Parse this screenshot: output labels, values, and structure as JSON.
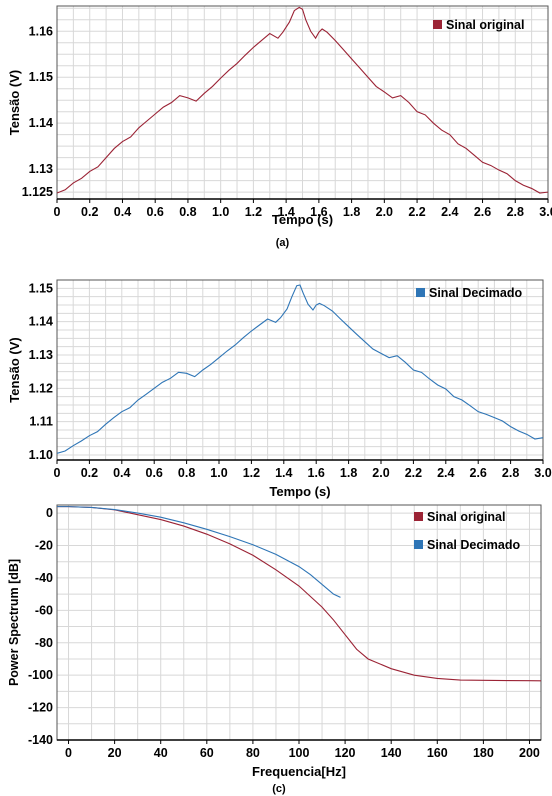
{
  "chart_data": [
    {
      "type": "line",
      "xlabel": "Tempo (s)",
      "ylabel": "Tensão (V)",
      "caption": "(a)",
      "xlim": [
        0,
        3.0
      ],
      "ylim": [
        1.1235,
        1.1655
      ],
      "xticks": [
        0,
        0.2,
        0.4,
        0.6,
        0.8,
        1.0,
        1.2,
        1.4,
        1.6,
        1.8,
        2.0,
        2.2,
        2.4,
        2.6,
        2.8,
        3.0
      ],
      "xtick_labels": [
        "0",
        "0.2",
        "0.4",
        "0.6",
        "0.8",
        "1.0",
        "1.2",
        "1.4",
        "1.6",
        "1.8",
        "2.0",
        "2.2",
        "2.4",
        "2.6",
        "2.8",
        "3.0"
      ],
      "yticks": [
        1.125,
        1.13,
        1.14,
        1.15,
        1.16
      ],
      "ytick_labels": [
        "1.125",
        "1.13",
        "1.14",
        "1.15",
        "1.16"
      ],
      "grid": true,
      "legend": "top-right",
      "series": [
        {
          "name": "Sinal original",
          "color": "#9b2335",
          "x": [
            0,
            0.05,
            0.1,
            0.15,
            0.2,
            0.25,
            0.3,
            0.35,
            0.4,
            0.45,
            0.5,
            0.55,
            0.6,
            0.65,
            0.7,
            0.75,
            0.8,
            0.85,
            0.9,
            0.95,
            1.0,
            1.05,
            1.1,
            1.15,
            1.2,
            1.25,
            1.3,
            1.35,
            1.38,
            1.42,
            1.45,
            1.48,
            1.5,
            1.52,
            1.55,
            1.58,
            1.6,
            1.62,
            1.65,
            1.7,
            1.75,
            1.8,
            1.85,
            1.9,
            1.95,
            2.0,
            2.05,
            2.1,
            2.15,
            2.2,
            2.25,
            2.3,
            2.35,
            2.4,
            2.45,
            2.5,
            2.55,
            2.6,
            2.65,
            2.7,
            2.75,
            2.8,
            2.85,
            2.9,
            2.95,
            3.0
          ],
          "y": [
            1.1248,
            1.1255,
            1.127,
            1.128,
            1.1295,
            1.1305,
            1.1325,
            1.1345,
            1.136,
            1.137,
            1.139,
            1.1405,
            1.142,
            1.1435,
            1.1445,
            1.146,
            1.1455,
            1.1448,
            1.1465,
            1.148,
            1.1498,
            1.1515,
            1.153,
            1.1548,
            1.1565,
            1.158,
            1.1595,
            1.1585,
            1.1598,
            1.162,
            1.1645,
            1.1652,
            1.1648,
            1.1625,
            1.16,
            1.1585,
            1.1598,
            1.1605,
            1.1598,
            1.158,
            1.156,
            1.154,
            1.152,
            1.15,
            1.148,
            1.1468,
            1.1455,
            1.146,
            1.1445,
            1.1425,
            1.1418,
            1.14,
            1.1385,
            1.1375,
            1.1355,
            1.1345,
            1.133,
            1.1315,
            1.1308,
            1.1298,
            1.129,
            1.1275,
            1.1265,
            1.1258,
            1.1248,
            1.125
          ]
        }
      ]
    },
    {
      "type": "line",
      "xlabel": "Tempo (s)",
      "ylabel": "Tensão (V)",
      "xlim": [
        0,
        3.0
      ],
      "ylim": [
        1.0985,
        1.1525
      ],
      "xticks": [
        0,
        0.2,
        0.4,
        0.6,
        0.8,
        1.0,
        1.2,
        1.4,
        1.6,
        1.8,
        2.0,
        2.2,
        2.4,
        2.6,
        2.8,
        3.0
      ],
      "xtick_labels": [
        "0",
        "0.2",
        "0.4",
        "0.6",
        "0.8",
        "1.0",
        "1.2",
        "1.4",
        "1.6",
        "1.8",
        "2.0",
        "2.2",
        "2.4",
        "2.6",
        "2.8",
        "3.0"
      ],
      "yticks": [
        1.1,
        1.11,
        1.12,
        1.13,
        1.14,
        1.15
      ],
      "ytick_labels": [
        "1.10",
        "1.11",
        "1.12",
        "1.13",
        "1.14",
        "1.15"
      ],
      "grid": true,
      "legend": "top-right",
      "series": [
        {
          "name": "Sinal Decimado",
          "color": "#2e75b6",
          "x": [
            0,
            0.05,
            0.1,
            0.15,
            0.2,
            0.25,
            0.3,
            0.35,
            0.4,
            0.45,
            0.5,
            0.55,
            0.6,
            0.65,
            0.7,
            0.75,
            0.8,
            0.85,
            0.9,
            0.95,
            1.0,
            1.05,
            1.1,
            1.15,
            1.2,
            1.25,
            1.3,
            1.35,
            1.38,
            1.42,
            1.45,
            1.48,
            1.5,
            1.52,
            1.55,
            1.58,
            1.6,
            1.62,
            1.65,
            1.7,
            1.75,
            1.8,
            1.85,
            1.9,
            1.95,
            2.0,
            2.05,
            2.1,
            2.15,
            2.2,
            2.25,
            2.3,
            2.35,
            2.4,
            2.45,
            2.5,
            2.55,
            2.6,
            2.65,
            2.7,
            2.75,
            2.8,
            2.85,
            2.9,
            2.95,
            3.0
          ],
          "y": [
            1.1005,
            1.1012,
            1.1028,
            1.1042,
            1.1058,
            1.107,
            1.1092,
            1.1112,
            1.113,
            1.1142,
            1.1165,
            1.1182,
            1.12,
            1.1218,
            1.123,
            1.1248,
            1.1245,
            1.1235,
            1.1255,
            1.1272,
            1.1292,
            1.1312,
            1.133,
            1.1352,
            1.1372,
            1.139,
            1.1408,
            1.1398,
            1.1412,
            1.1438,
            1.1475,
            1.1508,
            1.151,
            1.1485,
            1.1452,
            1.1435,
            1.145,
            1.1455,
            1.1448,
            1.1432,
            1.1408,
            1.1385,
            1.1362,
            1.134,
            1.1318,
            1.1305,
            1.1292,
            1.1298,
            1.1278,
            1.1255,
            1.1248,
            1.1228,
            1.121,
            1.1198,
            1.1175,
            1.1165,
            1.1148,
            1.113,
            1.1122,
            1.1112,
            1.1102,
            1.1085,
            1.1072,
            1.1062,
            1.1048,
            1.1052
          ]
        }
      ]
    },
    {
      "type": "line",
      "xlabel": "Frequencia[Hz]",
      "ylabel": "Power Spectrum [dB]",
      "caption": "(c)",
      "xlim": [
        -5,
        205
      ],
      "ylim": [
        -140,
        5
      ],
      "xticks": [
        0,
        20,
        40,
        60,
        80,
        100,
        120,
        140,
        160,
        180,
        200
      ],
      "xtick_labels": [
        "0",
        "20",
        "40",
        "60",
        "80",
        "100",
        "120",
        "140",
        "160",
        "180",
        "200"
      ],
      "yticks": [
        0,
        -20,
        -40,
        -60,
        -80,
        -100,
        -120,
        -140
      ],
      "ytick_labels": [
        "0",
        "-20",
        "-40",
        "-60",
        "-80",
        "-100",
        "-120",
        "-140"
      ],
      "grid": true,
      "legend": "top-right",
      "series": [
        {
          "name": "Sinal original",
          "color": "#9b2335",
          "x": [
            -5,
            0,
            10,
            20,
            30,
            40,
            50,
            60,
            70,
            80,
            90,
            100,
            110,
            115,
            120,
            125,
            130,
            140,
            150,
            160,
            170,
            180,
            190,
            200,
            205
          ],
          "y": [
            4,
            4,
            3.5,
            2,
            -1,
            -4,
            -8,
            -13,
            -19,
            -26,
            -35,
            -45,
            -58,
            -66,
            -75,
            -84,
            -90,
            -96,
            -100,
            -102,
            -103,
            -103.2,
            -103.3,
            -103.4,
            -103.5
          ]
        },
        {
          "name": "Sinal Decimado",
          "color": "#2e75b6",
          "x": [
            -5,
            0,
            10,
            20,
            30,
            40,
            50,
            60,
            70,
            80,
            90,
            100,
            105,
            110,
            115,
            118
          ],
          "y": [
            4,
            4,
            3.5,
            2.2,
            0,
            -2.5,
            -6,
            -10,
            -14.5,
            -19.5,
            -25.5,
            -33,
            -38,
            -44,
            -50,
            -52
          ]
        }
      ]
    }
  ]
}
